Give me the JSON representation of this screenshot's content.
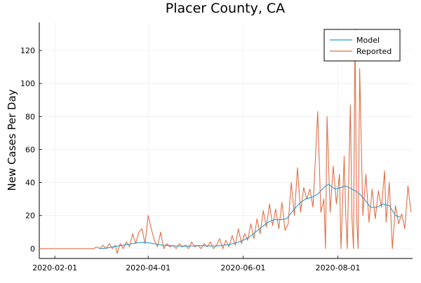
{
  "chart_data": {
    "type": "line",
    "title": "Placer County, CA",
    "xlabel": "",
    "ylabel": "New Cases Per Day",
    "x_axis": {
      "type": "date",
      "range": [
        "2020-01-22",
        "2020-09-18"
      ],
      "ticks": [
        "2020-02-01",
        "2020-04-01",
        "2020-06-01",
        "2020-08-01"
      ]
    },
    "y_axis": {
      "range": [
        -6,
        137
      ],
      "ticks": [
        0,
        20,
        40,
        60,
        80,
        100,
        120
      ]
    },
    "grid": true,
    "legend_position": "top-right",
    "series": [
      {
        "name": "Model",
        "color": "#1f9ed1",
        "points": [
          [
            "2020-03-01",
            0
          ],
          [
            "2020-03-05",
            0.3
          ],
          [
            "2020-03-09",
            1
          ],
          [
            "2020-03-13",
            1.6
          ],
          [
            "2020-03-17",
            2.2
          ],
          [
            "2020-03-21",
            2.9
          ],
          [
            "2020-03-25",
            3.5
          ],
          [
            "2020-03-29",
            3.7
          ],
          [
            "2020-04-02",
            3.4
          ],
          [
            "2020-04-06",
            2.7
          ],
          [
            "2020-04-10",
            2.1
          ],
          [
            "2020-04-14",
            1.8
          ],
          [
            "2020-04-18",
            1.6
          ],
          [
            "2020-04-22",
            1.5
          ],
          [
            "2020-04-26",
            1.5
          ],
          [
            "2020-04-30",
            1.6
          ],
          [
            "2020-05-04",
            1.8
          ],
          [
            "2020-05-08",
            1.7
          ],
          [
            "2020-05-12",
            1.6
          ],
          [
            "2020-05-16",
            1.7
          ],
          [
            "2020-05-20",
            2.1
          ],
          [
            "2020-05-24",
            2.6
          ],
          [
            "2020-05-28",
            3.6
          ],
          [
            "2020-06-01",
            5
          ],
          [
            "2020-06-05",
            7
          ],
          [
            "2020-06-09",
            10
          ],
          [
            "2020-06-13",
            13
          ],
          [
            "2020-06-17",
            16
          ],
          [
            "2020-06-21",
            17.5
          ],
          [
            "2020-06-25",
            17.5
          ],
          [
            "2020-06-29",
            18
          ],
          [
            "2020-07-03",
            23
          ],
          [
            "2020-07-07",
            27
          ],
          [
            "2020-07-11",
            30
          ],
          [
            "2020-07-15",
            31
          ],
          [
            "2020-07-19",
            33
          ],
          [
            "2020-07-23",
            37
          ],
          [
            "2020-07-26",
            39
          ],
          [
            "2020-07-30",
            36
          ],
          [
            "2020-08-03",
            37
          ],
          [
            "2020-08-06",
            38
          ],
          [
            "2020-08-10",
            36
          ],
          [
            "2020-08-14",
            34
          ],
          [
            "2020-08-18",
            30
          ],
          [
            "2020-08-22",
            25
          ],
          [
            "2020-08-26",
            25
          ],
          [
            "2020-08-30",
            27
          ],
          [
            "2020-09-03",
            26
          ],
          [
            "2020-09-07",
            20
          ],
          [
            "2020-09-10",
            19
          ]
        ]
      },
      {
        "name": "Reported",
        "color": "#e26f46",
        "points": [
          [
            "2020-01-22",
            0
          ],
          [
            "2020-02-10",
            0
          ],
          [
            "2020-02-26",
            0
          ],
          [
            "2020-02-28",
            1
          ],
          [
            "2020-03-01",
            0
          ],
          [
            "2020-03-03",
            2
          ],
          [
            "2020-03-05",
            0
          ],
          [
            "2020-03-07",
            3
          ],
          [
            "2020-03-09",
            0
          ],
          [
            "2020-03-11",
            2
          ],
          [
            "2020-03-12",
            -3
          ],
          [
            "2020-03-14",
            3
          ],
          [
            "2020-03-16",
            0
          ],
          [
            "2020-03-18",
            4
          ],
          [
            "2020-03-20",
            1
          ],
          [
            "2020-03-22",
            9
          ],
          [
            "2020-03-24",
            3
          ],
          [
            "2020-03-26",
            10
          ],
          [
            "2020-03-28",
            12
          ],
          [
            "2020-03-30",
            3
          ],
          [
            "2020-04-01",
            20
          ],
          [
            "2020-04-03",
            12
          ],
          [
            "2020-04-05",
            5
          ],
          [
            "2020-04-07",
            1
          ],
          [
            "2020-04-09",
            10
          ],
          [
            "2020-04-11",
            0
          ],
          [
            "2020-04-13",
            3
          ],
          [
            "2020-04-15",
            1
          ],
          [
            "2020-04-17",
            2
          ],
          [
            "2020-04-19",
            0
          ],
          [
            "2020-04-21",
            3
          ],
          [
            "2020-04-23",
            1
          ],
          [
            "2020-04-25",
            2
          ],
          [
            "2020-04-27",
            0
          ],
          [
            "2020-04-29",
            4
          ],
          [
            "2020-05-01",
            1
          ],
          [
            "2020-05-03",
            2
          ],
          [
            "2020-05-05",
            0
          ],
          [
            "2020-05-07",
            3
          ],
          [
            "2020-05-09",
            1
          ],
          [
            "2020-05-11",
            4
          ],
          [
            "2020-05-13",
            0
          ],
          [
            "2020-05-15",
            2
          ],
          [
            "2020-05-17",
            6
          ],
          [
            "2020-05-19",
            0
          ],
          [
            "2020-05-21",
            5
          ],
          [
            "2020-05-23",
            1
          ],
          [
            "2020-05-25",
            8
          ],
          [
            "2020-05-27",
            2
          ],
          [
            "2020-05-29",
            12
          ],
          [
            "2020-05-31",
            3
          ],
          [
            "2020-06-02",
            9
          ],
          [
            "2020-06-04",
            5
          ],
          [
            "2020-06-06",
            15
          ],
          [
            "2020-06-08",
            6
          ],
          [
            "2020-06-10",
            18
          ],
          [
            "2020-06-12",
            9
          ],
          [
            "2020-06-14",
            23
          ],
          [
            "2020-06-16",
            13
          ],
          [
            "2020-06-18",
            27
          ],
          [
            "2020-06-20",
            14
          ],
          [
            "2020-06-22",
            24
          ],
          [
            "2020-06-24",
            12
          ],
          [
            "2020-06-26",
            28
          ],
          [
            "2020-06-28",
            11
          ],
          [
            "2020-06-30",
            15
          ],
          [
            "2020-07-02",
            40
          ],
          [
            "2020-07-04",
            20
          ],
          [
            "2020-07-06",
            49
          ],
          [
            "2020-07-08",
            22
          ],
          [
            "2020-07-10",
            37
          ],
          [
            "2020-07-12",
            30
          ],
          [
            "2020-07-14",
            36
          ],
          [
            "2020-07-16",
            25
          ],
          [
            "2020-07-19",
            83
          ],
          [
            "2020-07-21",
            22
          ],
          [
            "2020-07-23",
            30
          ],
          [
            "2020-07-24",
            0
          ],
          [
            "2020-07-25",
            80
          ],
          [
            "2020-07-27",
            22
          ],
          [
            "2020-07-29",
            50
          ],
          [
            "2020-07-31",
            27
          ],
          [
            "2020-08-02",
            45
          ],
          [
            "2020-08-03",
            0
          ],
          [
            "2020-08-05",
            56
          ],
          [
            "2020-08-06",
            21
          ],
          [
            "2020-08-07",
            0
          ],
          [
            "2020-08-09",
            87
          ],
          [
            "2020-08-10",
            18
          ],
          [
            "2020-08-11",
            0
          ],
          [
            "2020-08-12",
            133
          ],
          [
            "2020-08-13",
            20
          ],
          [
            "2020-08-14",
            0
          ],
          [
            "2020-08-15",
            109
          ],
          [
            "2020-08-17",
            20
          ],
          [
            "2020-08-19",
            45
          ],
          [
            "2020-08-21",
            16
          ],
          [
            "2020-08-23",
            36
          ],
          [
            "2020-08-25",
            18
          ],
          [
            "2020-08-27",
            35
          ],
          [
            "2020-08-29",
            25
          ],
          [
            "2020-08-31",
            47
          ],
          [
            "2020-09-01",
            16
          ],
          [
            "2020-09-03",
            40
          ],
          [
            "2020-09-05",
            0
          ],
          [
            "2020-09-07",
            26
          ],
          [
            "2020-09-09",
            15
          ],
          [
            "2020-09-11",
            21
          ],
          [
            "2020-09-13",
            12
          ],
          [
            "2020-09-15",
            38
          ],
          [
            "2020-09-17",
            22
          ]
        ]
      }
    ]
  }
}
